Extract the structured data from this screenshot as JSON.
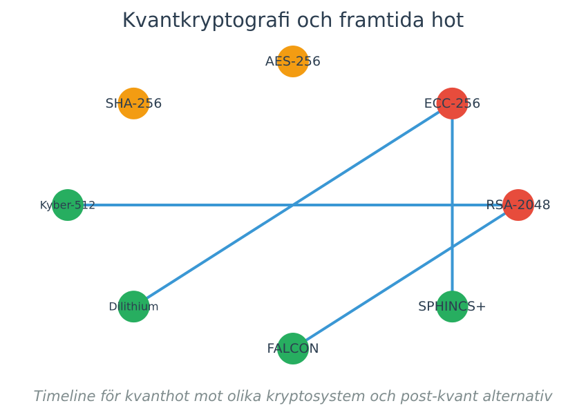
{
  "title": "Kvantkryptografi och framtida hot",
  "subtitle": "Timeline för kvanthot mot olika kryptosystem och post-kvant alternativ",
  "colors": {
    "vulnerable": "#e74c3c",
    "at_risk": "#f39c12",
    "post_quantum": "#27ae60",
    "edge": "#3a97d4"
  },
  "nodes": [
    {
      "id": "aes",
      "label": "AES-256",
      "status": "at_risk"
    },
    {
      "id": "ecc",
      "label": "ECC-256",
      "status": "vulnerable"
    },
    {
      "id": "rsa",
      "label": "RSA-2048",
      "status": "vulnerable"
    },
    {
      "id": "sphincs",
      "label": "SPHINCS+",
      "status": "post_quantum"
    },
    {
      "id": "falcon",
      "label": "FALCON",
      "status": "post_quantum"
    },
    {
      "id": "dilithium",
      "label": "Dilithium",
      "status": "post_quantum"
    },
    {
      "id": "kyber",
      "label": "Kyber-512",
      "status": "post_quantum"
    },
    {
      "id": "sha",
      "label": "SHA-256",
      "status": "at_risk"
    }
  ],
  "edges": [
    {
      "from": "kyber",
      "to": "rsa"
    },
    {
      "from": "ecc",
      "to": "dilithium"
    },
    {
      "from": "ecc",
      "to": "sphincs"
    },
    {
      "from": "rsa",
      "to": "falcon"
    }
  ]
}
